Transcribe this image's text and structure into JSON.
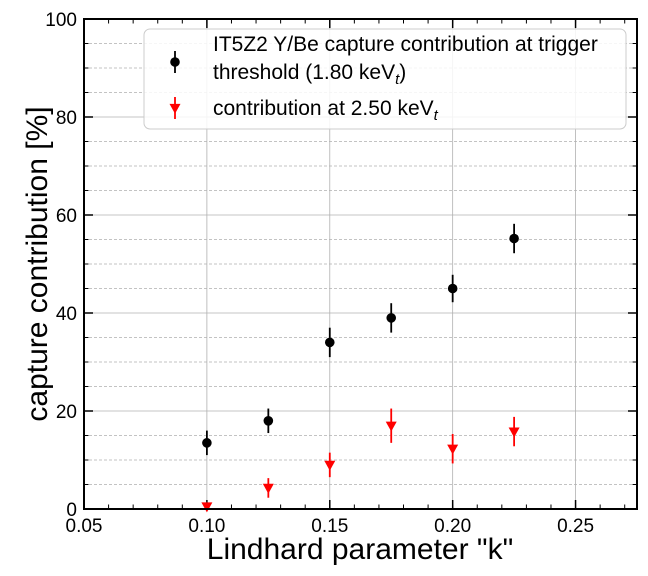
{
  "chart_data": {
    "type": "scatter",
    "title": "",
    "xlabel": "Lindhard parameter \"k\"",
    "ylabel": "capture contribution [%]",
    "xlim": [
      0.05,
      0.275
    ],
    "ylim": [
      0,
      100
    ],
    "x_ticks": [
      "0.05",
      "0.10",
      "0.15",
      "0.20",
      "0.25"
    ],
    "y_ticks": [
      "0",
      "20",
      "40",
      "60",
      "80",
      "100"
    ],
    "grid": true,
    "legend_position": "top-right",
    "series": [
      {
        "name": "IT5Z2 Y/Be capture contribution at trigger threshold (1.80 keVt)",
        "legend_line1": "IT5Z2 Y/Be capture contribution at trigger",
        "legend_line2_main": " threshold (1.80 keV",
        "legend_line2_sub": "t",
        "legend_line2_tail": ")",
        "color": "#000000",
        "marker": "circle",
        "points": [
          {
            "x": 0.1,
            "y": 13.5,
            "err": 2.5
          },
          {
            "x": 0.125,
            "y": 18.0,
            "err": 2.5
          },
          {
            "x": 0.15,
            "y": 34.0,
            "err": 3.0
          },
          {
            "x": 0.175,
            "y": 39.0,
            "err": 3.0
          },
          {
            "x": 0.2,
            "y": 45.0,
            "err": 2.8
          },
          {
            "x": 0.225,
            "y": 55.2,
            "err": 3.0
          }
        ]
      },
      {
        "name": "contribution at 2.50 keVt",
        "legend_main": "contribution at 2.50 keV",
        "legend_sub": "t",
        "color": "#ff0000",
        "marker": "triangle-down",
        "points": [
          {
            "x": 0.1,
            "y": 0.5,
            "err": 0.8
          },
          {
            "x": 0.125,
            "y": 4.3,
            "err": 2.0
          },
          {
            "x": 0.15,
            "y": 9.0,
            "err": 2.5
          },
          {
            "x": 0.175,
            "y": 17.0,
            "err": 3.5
          },
          {
            "x": 0.2,
            "y": 12.3,
            "err": 3.0
          },
          {
            "x": 0.225,
            "y": 15.8,
            "err": 3.0
          }
        ]
      }
    ]
  }
}
